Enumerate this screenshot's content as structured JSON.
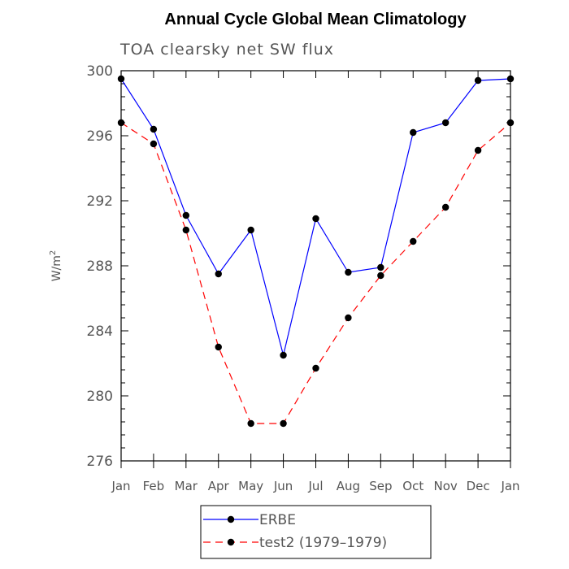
{
  "chart_data": {
    "type": "line",
    "title": "Annual Cycle Global Mean Climatology",
    "subtitle": "TOA clearsky net SW flux",
    "ylabel": "W/m",
    "ylabel_superscript": "2",
    "xlabel": "",
    "categories": [
      "Jan",
      "Feb",
      "Mar",
      "Apr",
      "May",
      "Jun",
      "Jul",
      "Aug",
      "Sep",
      "Oct",
      "Nov",
      "Dec",
      "Jan"
    ],
    "ylim": [
      276,
      300
    ],
    "yticks": [
      276,
      280,
      284,
      288,
      292,
      296,
      300
    ],
    "legend_placement": "bottom",
    "grid": false,
    "series": [
      {
        "name": "ERBE",
        "color": "#0000ff",
        "dash": "solid",
        "values": [
          299.5,
          296.4,
          291.1,
          287.5,
          290.2,
          282.5,
          290.9,
          287.6,
          287.9,
          296.2,
          296.8,
          299.4,
          299.5
        ]
      },
      {
        "name": "test2 (1979–1979)",
        "color": "#ff0000",
        "dash": "dashed",
        "values": [
          296.8,
          295.5,
          290.2,
          283.0,
          278.3,
          278.3,
          281.7,
          284.8,
          287.4,
          289.5,
          291.6,
          295.1,
          296.8
        ]
      }
    ]
  }
}
